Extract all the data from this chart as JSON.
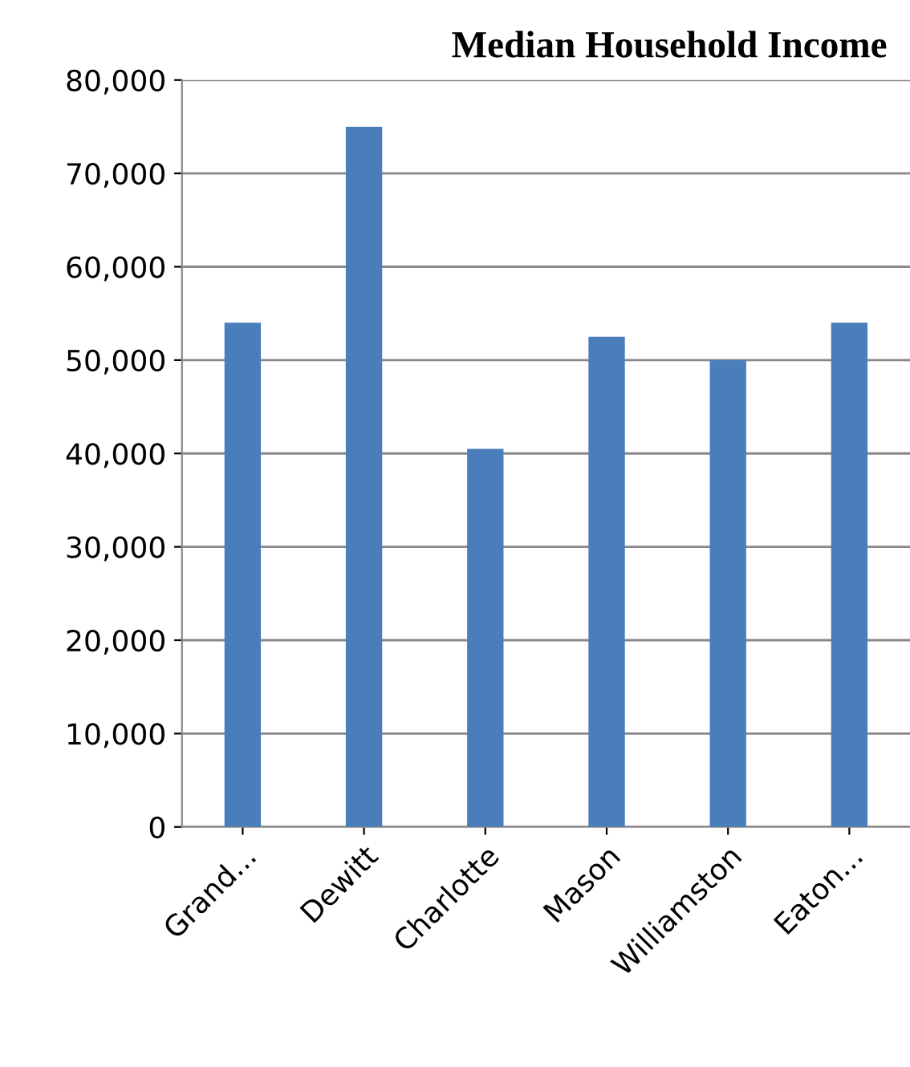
{
  "chart_data": {
    "type": "bar",
    "title": "Median Household Income",
    "categories": [
      "Grand...",
      "Dewitt",
      "Charlotte",
      "Mason",
      "Williamston",
      "Eaton..."
    ],
    "series": [
      {
        "color": "#4a7ebb",
        "values": [
          54000,
          75000,
          40500,
          52500,
          50000,
          54000
        ]
      }
    ],
    "ylim": [
      0,
      80000
    ],
    "yticks": [
      {
        "value": 0,
        "label": "0"
      },
      {
        "value": 10000,
        "label": "10,000"
      },
      {
        "value": 20000,
        "label": "20,000"
      },
      {
        "value": 30000,
        "label": "30,000"
      },
      {
        "value": 40000,
        "label": "40,000"
      },
      {
        "value": 50000,
        "label": "50,000"
      },
      {
        "value": 60000,
        "label": "60,000"
      },
      {
        "value": 70000,
        "label": "70,000"
      },
      {
        "value": 80000,
        "label": "80,000"
      }
    ],
    "grid": "y"
  }
}
